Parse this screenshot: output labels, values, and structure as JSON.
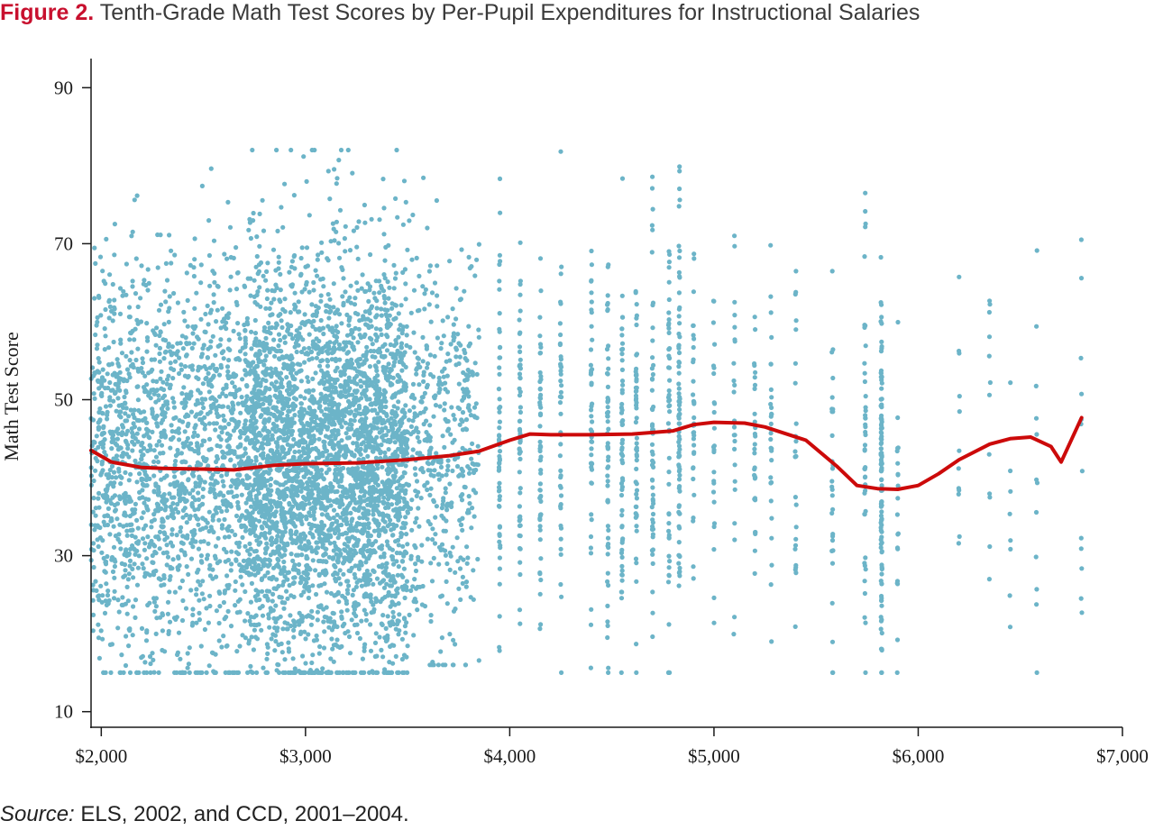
{
  "figure": {
    "label": "Figure 2.",
    "title": "Tenth-Grade Math Test Scores by Per-Pupil Expenditures for Instructional Salaries"
  },
  "source": {
    "label": "Source:",
    "text": "ELS, 2002, and CCD, 2001–2004."
  },
  "colors": {
    "points": "#6cb4c8",
    "trend": "#cc0a0a",
    "axis": "#1a1a1a",
    "title_label": "#c8102e"
  },
  "chart_data": {
    "type": "scatter",
    "title": "Tenth-Grade Math Test Scores by Per-Pupil Expenditures for Instructional Salaries",
    "xlabel": "",
    "ylabel": "Math Test Score",
    "xlim": [
      1950,
      7000
    ],
    "ylim": [
      8,
      92
    ],
    "x_ticks": [
      2000,
      3000,
      4000,
      5000,
      6000,
      7000
    ],
    "x_tick_labels": [
      "$2,000",
      "$3,000",
      "$4,000",
      "$5,000",
      "$6,000",
      "$7,000"
    ],
    "y_ticks": [
      10,
      30,
      50,
      70,
      90
    ],
    "y_tick_labels": [
      "10",
      "30",
      "50",
      "70",
      "90"
    ],
    "grid": false,
    "legend": "none",
    "scatter_summary": {
      "n_points_approx": 6000,
      "x_range": [
        1950,
        6800
      ],
      "y_range": [
        15,
        82
      ],
      "densest_region": {
        "x": [
          2700,
          3500
        ],
        "y": [
          20,
          65
        ]
      }
    },
    "series": [
      {
        "type": "line",
        "points": [
          [
            1950,
            43.5
          ],
          [
            2050,
            42.0
          ],
          [
            2200,
            41.3
          ],
          [
            2300,
            41.2
          ],
          [
            2500,
            41.1
          ],
          [
            2650,
            41.0
          ],
          [
            2850,
            41.6
          ],
          [
            3000,
            41.8
          ],
          [
            3250,
            41.9
          ],
          [
            3500,
            42.3
          ],
          [
            3700,
            42.8
          ],
          [
            3850,
            43.4
          ],
          [
            4000,
            44.8
          ],
          [
            4100,
            45.6
          ],
          [
            4200,
            45.5
          ],
          [
            4400,
            45.5
          ],
          [
            4600,
            45.6
          ],
          [
            4800,
            46.0
          ],
          [
            4900,
            46.8
          ],
          [
            5000,
            47.1
          ],
          [
            5150,
            47.0
          ],
          [
            5250,
            46.5
          ],
          [
            5450,
            44.8
          ],
          [
            5600,
            41.5
          ],
          [
            5700,
            39.0
          ],
          [
            5800,
            38.6
          ],
          [
            5900,
            38.5
          ],
          [
            6000,
            39.0
          ],
          [
            6100,
            40.5
          ],
          [
            6200,
            42.3
          ],
          [
            6350,
            44.3
          ],
          [
            6450,
            45.0
          ],
          [
            6550,
            45.2
          ],
          [
            6650,
            44.0
          ],
          [
            6700,
            42.0
          ],
          [
            6800,
            47.7
          ]
        ]
      }
    ]
  }
}
